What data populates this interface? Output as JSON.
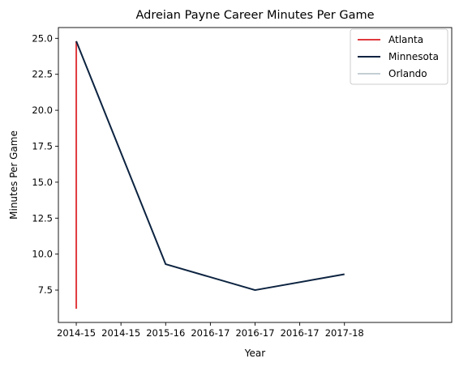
{
  "chart_data": {
    "type": "line",
    "title": "Adreian Payne Career Minutes Per Game",
    "xlabel": "Year",
    "ylabel": "Minutes Per Game",
    "x_tick_labels": [
      "2014-15",
      "2014-15",
      "2015-16",
      "2016-17",
      "2016-17",
      "2016-17",
      "2017-18"
    ],
    "xlim": [
      -0.2,
      4.2
    ],
    "ylim": [
      5.25,
      25.75
    ],
    "y_ticks": [
      7.5,
      10.0,
      12.5,
      15.0,
      17.5,
      20.0,
      22.5,
      25.0
    ],
    "y_tick_labels": [
      "7.5",
      "10.0",
      "12.5",
      "15.0",
      "17.5",
      "20.0",
      "22.5",
      "25.0"
    ],
    "grid": false,
    "legend_position": "top-right",
    "series": [
      {
        "name": "Atlanta",
        "color": "#e03a3e",
        "points": [
          [
            0,
            6.2
          ],
          [
            0,
            24.8
          ]
        ]
      },
      {
        "name": "Minnesota",
        "color": "#0c2340",
        "points": [
          [
            0,
            24.8
          ],
          [
            1,
            9.3
          ],
          [
            2,
            7.5
          ],
          [
            3,
            8.6
          ]
        ]
      },
      {
        "name": "Orlando",
        "color": "#c4ced4",
        "points": []
      }
    ]
  }
}
